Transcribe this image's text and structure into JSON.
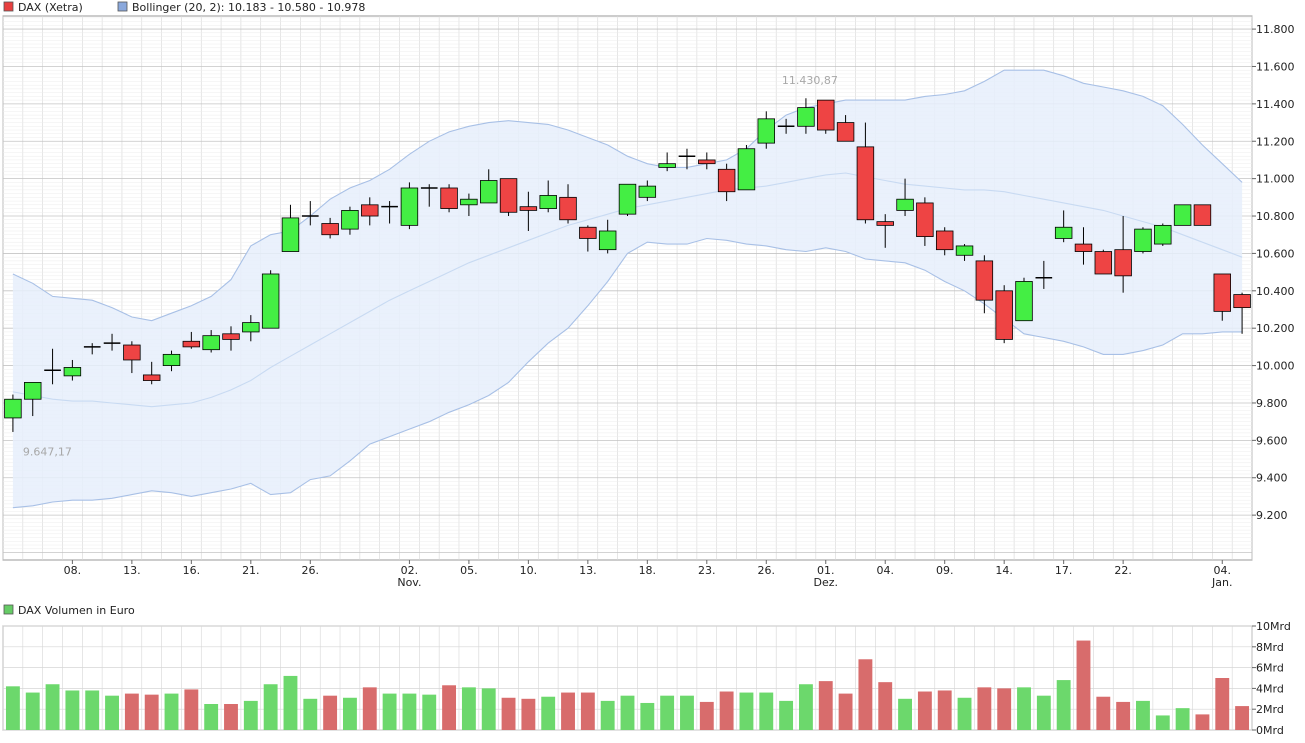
{
  "legend": {
    "dax_label": "DAX (Xetra)",
    "dax_color": "#e84040",
    "bollinger_label": "Bollinger (20, 2): 10.183 - 10.580 - 10.978",
    "bollinger_color": "#8aa8dc",
    "volume_label": "DAX Volumen in Euro",
    "volume_color": "#66cc66"
  },
  "colors": {
    "up": "#44ee44",
    "down": "#ee4444",
    "band_fill": "#e6effb",
    "band_line": "#a8c0e6",
    "mid_line": "#c8daf2",
    "grid": "#d6d6d6",
    "vol_up": "#6cd86c",
    "vol_down": "#d86c6c"
  },
  "chart_data": [
    {
      "type": "candlestick",
      "title": "DAX (Xetra)",
      "y_ticks": [
        "9.200",
        "9.400",
        "9.600",
        "9.800",
        "10.000",
        "10.200",
        "10.400",
        "10.600",
        "10.800",
        "11.000",
        "11.200",
        "11.400",
        "11.600",
        "11.800"
      ],
      "y_tick_values": [
        9200,
        9400,
        9600,
        9800,
        10000,
        10200,
        10400,
        10600,
        10800,
        11000,
        11200,
        11400,
        11600,
        11800
      ],
      "ylim": [
        8960,
        11870
      ],
      "x_labels": [
        {
          "i": 3,
          "label": "08."
        },
        {
          "i": 6,
          "label": "13."
        },
        {
          "i": 9,
          "label": "16."
        },
        {
          "i": 12,
          "label": "21."
        },
        {
          "i": 15,
          "label": "26."
        },
        {
          "i": 20,
          "label": "02.",
          "sub": "Nov."
        },
        {
          "i": 23,
          "label": "05."
        },
        {
          "i": 26,
          "label": "10."
        },
        {
          "i": 29,
          "label": "13."
        },
        {
          "i": 32,
          "label": "18."
        },
        {
          "i": 35,
          "label": "23."
        },
        {
          "i": 38,
          "label": "26."
        },
        {
          "i": 41,
          "label": "01.",
          "sub": "Dez."
        },
        {
          "i": 44,
          "label": "04."
        },
        {
          "i": 47,
          "label": "09."
        },
        {
          "i": 50,
          "label": "14."
        },
        {
          "i": 53,
          "label": "17."
        },
        {
          "i": 56,
          "label": "22."
        },
        {
          "i": 61,
          "label": "04.",
          "sub": "Jan."
        }
      ],
      "annotations": [
        {
          "i": 0,
          "value": 9647.17,
          "text": "9.647,17",
          "position": "below"
        },
        {
          "i": 40,
          "value": 11430.87,
          "text": "11.430,87",
          "position": "above"
        }
      ],
      "candles": [
        [
          9720,
          9845,
          9645,
          9820
        ],
        [
          9820,
          9910,
          9730,
          9910
        ],
        [
          9975,
          10090,
          9900,
          9975
        ],
        [
          9945,
          10030,
          9920,
          9990
        ],
        [
          10100,
          10120,
          10060,
          10100
        ],
        [
          10120,
          10170,
          10080,
          10120
        ],
        [
          10110,
          10130,
          9960,
          10030
        ],
        [
          9950,
          10020,
          9900,
          9920
        ],
        [
          10000,
          10080,
          9970,
          10060
        ],
        [
          10130,
          10180,
          10090,
          10100
        ],
        [
          10085,
          10190,
          10070,
          10160
        ],
        [
          10170,
          10210,
          10080,
          10140
        ],
        [
          10180,
          10270,
          10130,
          10230
        ],
        [
          10200,
          10510,
          10200,
          10490
        ],
        [
          10610,
          10860,
          10610,
          10790
        ],
        [
          10800,
          10880,
          10750,
          10800
        ],
        [
          10760,
          10790,
          10680,
          10700
        ],
        [
          10730,
          10850,
          10700,
          10830
        ],
        [
          10860,
          10900,
          10750,
          10800
        ],
        [
          10850,
          10880,
          10760,
          10850
        ],
        [
          10750,
          10980,
          10730,
          10950
        ],
        [
          10950,
          10970,
          10850,
          10950
        ],
        [
          10950,
          10970,
          10820,
          10840
        ],
        [
          10860,
          10920,
          10800,
          10890
        ],
        [
          10870,
          11050,
          10870,
          10990
        ],
        [
          11000,
          11000,
          10800,
          10820
        ],
        [
          10850,
          10930,
          10720,
          10830
        ],
        [
          10840,
          10990,
          10820,
          10910
        ],
        [
          10900,
          10970,
          10760,
          10780
        ],
        [
          10740,
          10750,
          10610,
          10680
        ],
        [
          10620,
          10780,
          10600,
          10720
        ],
        [
          10810,
          10970,
          10800,
          10970
        ],
        [
          10900,
          10990,
          10880,
          10960
        ],
        [
          11060,
          11140,
          11040,
          11080
        ],
        [
          11120,
          11160,
          11050,
          11120
        ],
        [
          11100,
          11140,
          11050,
          11080
        ],
        [
          11050,
          11080,
          10880,
          10930
        ],
        [
          10940,
          11180,
          10940,
          11160
        ],
        [
          11190,
          11360,
          11160,
          11320
        ],
        [
          11280,
          11320,
          11240,
          11280
        ],
        [
          11280,
          11430,
          11240,
          11380
        ],
        [
          11420,
          11420,
          11240,
          11260
        ],
        [
          11300,
          11340,
          11200,
          11200
        ],
        [
          11170,
          11300,
          10760,
          10780
        ],
        [
          10770,
          10810,
          10630,
          10750
        ],
        [
          10830,
          11000,
          10800,
          10890
        ],
        [
          10870,
          10900,
          10640,
          10690
        ],
        [
          10720,
          10740,
          10590,
          10620
        ],
        [
          10590,
          10650,
          10560,
          10640
        ],
        [
          10560,
          10590,
          10280,
          10350
        ],
        [
          10400,
          10430,
          10120,
          10140
        ],
        [
          10240,
          10470,
          10240,
          10450
        ],
        [
          10470,
          10560,
          10410,
          10470
        ],
        [
          10680,
          10830,
          10660,
          10740
        ],
        [
          10650,
          10740,
          10540,
          10610
        ],
        [
          10610,
          10620,
          10500,
          10490
        ],
        [
          10620,
          10800,
          10390,
          10480
        ],
        [
          10610,
          10740,
          10600,
          10730
        ],
        [
          10650,
          10760,
          10640,
          10750
        ],
        [
          10750,
          10860,
          10750,
          10860
        ],
        [
          10860,
          10860,
          10750,
          10750
        ],
        [
          10490,
          10490,
          10240,
          10290
        ],
        [
          10380,
          10390,
          10170,
          10310
        ]
      ],
      "bollinger": {
        "upper": [
          10490,
          10440,
          10370,
          10360,
          10350,
          10310,
          10260,
          10240,
          10280,
          10320,
          10370,
          10460,
          10640,
          10700,
          10720,
          10800,
          10890,
          10950,
          10990,
          11050,
          11130,
          11200,
          11250,
          11280,
          11300,
          11310,
          11300,
          11290,
          11260,
          11220,
          11180,
          11120,
          11080,
          11060,
          11060,
          11080,
          11100,
          11160,
          11260,
          11340,
          11380,
          11400,
          11420,
          11420,
          11420,
          11420,
          11440,
          11450,
          11470,
          11520,
          11580,
          11580,
          11580,
          11550,
          11510,
          11490,
          11470,
          11440,
          11390,
          11290,
          11180,
          11080,
          10980
        ],
        "middle": [
          9860,
          9840,
          9820,
          9810,
          9810,
          9800,
          9790,
          9780,
          9790,
          9800,
          9830,
          9870,
          9920,
          9990,
          10050,
          10110,
          10170,
          10230,
          10290,
          10350,
          10400,
          10450,
          10500,
          10550,
          10590,
          10630,
          10670,
          10710,
          10750,
          10780,
          10810,
          10840,
          10860,
          10880,
          10900,
          10920,
          10940,
          10950,
          10960,
          10980,
          11000,
          11020,
          11030,
          11010,
          10990,
          10970,
          10960,
          10950,
          10940,
          10940,
          10930,
          10910,
          10890,
          10870,
          10850,
          10830,
          10800,
          10770,
          10740,
          10700,
          10660,
          10620,
          10580
        ],
        "lower": [
          9240,
          9250,
          9270,
          9280,
          9280,
          9290,
          9310,
          9330,
          9320,
          9300,
          9320,
          9340,
          9370,
          9310,
          9320,
          9390,
          9410,
          9490,
          9580,
          9620,
          9660,
          9700,
          9750,
          9790,
          9840,
          9910,
          10020,
          10120,
          10200,
          10320,
          10450,
          10600,
          10660,
          10650,
          10650,
          10680,
          10670,
          10650,
          10640,
          10620,
          10610,
          10630,
          10610,
          10570,
          10560,
          10550,
          10510,
          10450,
          10400,
          10330,
          10250,
          10170,
          10150,
          10130,
          10100,
          10060,
          10060,
          10080,
          10110,
          10170,
          10170,
          10180,
          10180
        ]
      }
    },
    {
      "type": "bar",
      "title": "DAX Volumen in Euro",
      "y_ticks": [
        "0Mrd",
        "2Mrd",
        "4Mrd",
        "6Mrd",
        "8Mrd",
        "10Mrd"
      ],
      "y_tick_values": [
        0,
        2,
        4,
        6,
        8,
        10
      ],
      "ylim": [
        0,
        10
      ],
      "values": [
        4.2,
        3.6,
        4.4,
        3.8,
        3.8,
        3.3,
        3.5,
        3.4,
        3.5,
        3.9,
        2.5,
        2.5,
        2.8,
        4.4,
        5.2,
        3.0,
        3.3,
        3.1,
        4.1,
        3.5,
        3.5,
        3.4,
        4.3,
        4.1,
        4.0,
        3.1,
        3.0,
        3.2,
        3.6,
        3.6,
        2.8,
        3.3,
        2.6,
        3.3,
        3.3,
        2.7,
        3.7,
        3.6,
        3.6,
        2.8,
        4.4,
        4.7,
        3.5,
        6.8,
        4.6,
        3.0,
        3.7,
        3.8,
        3.1,
        4.1,
        4.0,
        4.1,
        3.3,
        4.8,
        8.6,
        3.2,
        2.7,
        2.8,
        1.4,
        2.1,
        1.5,
        5.0,
        2.3
      ]
    }
  ]
}
